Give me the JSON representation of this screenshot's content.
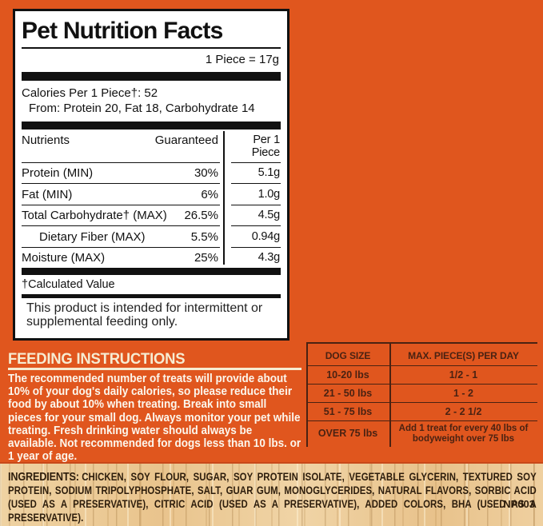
{
  "panel": {
    "title": "Pet Nutrition Facts",
    "serving": "1 Piece = 17g",
    "calories_line": "Calories Per 1 Piece†: 52",
    "calories_from": "From: Protein 20, Fat 18, Carbohydrate 14",
    "table": {
      "col_nutrients": "Nutrients",
      "col_guaranteed": "Guaranteed",
      "col_per_piece": "Per 1 Piece",
      "rows": [
        {
          "label": "Protein (MIN)",
          "guaranteed": "30%",
          "per_piece": "5.1g"
        },
        {
          "label": "Fat (MIN)",
          "guaranteed": "6%",
          "per_piece": "1.0g"
        },
        {
          "label": "Total Carbohydrate† (MAX)",
          "guaranteed": "26.5%",
          "per_piece": "4.5g"
        },
        {
          "label": "Dietary Fiber (MAX)",
          "guaranteed": "5.5%",
          "per_piece": "0.94g"
        },
        {
          "label": "Moisture (MAX)",
          "guaranteed": "25%",
          "per_piece": "4.3g"
        }
      ]
    },
    "footnote": "†Calculated Value",
    "disclaimer": "This product is intended for intermittent or supplemental feeding only."
  },
  "feeding": {
    "heading": "FEEDING INSTRUCTIONS",
    "body": "The recommended number of treats will provide about 10% of your dog's daily calories, so please reduce their food by about 10% when treating. Break into small pieces for your small dog. Always monitor your pet while treating. Fresh drinking water should always be available. Not recommended for dogs less than 10 lbs. or 1 year of age.",
    "table": {
      "col_size": "DOG SIZE",
      "col_pieces": "MAX. PIECE(S) PER DAY",
      "rows": [
        {
          "size": "10-20 lbs",
          "pieces": "1/2 - 1"
        },
        {
          "size": "21 - 50 lbs",
          "pieces": "1 - 2"
        },
        {
          "size": "51 - 75 lbs",
          "pieces": "2 - 2 1/2"
        },
        {
          "size": "OVER 75 lbs",
          "pieces": "Add 1 treat for every 40 lbs of bodyweight over 75 lbs"
        }
      ]
    }
  },
  "ingredients": {
    "label": "INGREDIENTS:",
    "body": "CHICKEN, SOY FLOUR, SUGAR, SOY PROTEIN ISOLATE, VEGETABLE GLYCERIN, TEXTURED SOY PROTEIN, SODIUM TRIPOLYPHOSPHATE, SALT, GUAR GUM, MONOGLYCERIDES, NATURAL FLAVORS, SORBIC ACID (USED AS A PRESERVATIVE), CITRIC ACID (USED AS A PRESERVATIVE), ADDED COLORS, BHA (USED AS A PRESERVATIVE).",
    "code": "NP003"
  },
  "colors": {
    "background_orange": "#E0561E",
    "panel_ink": "#111111",
    "cream": "#F6ECD2",
    "feeding_text": "#FCF7ED",
    "table_brown": "#4A2212",
    "wood_tan": "#ECCB99",
    "ingredients_ink": "#2D1D0C"
  }
}
